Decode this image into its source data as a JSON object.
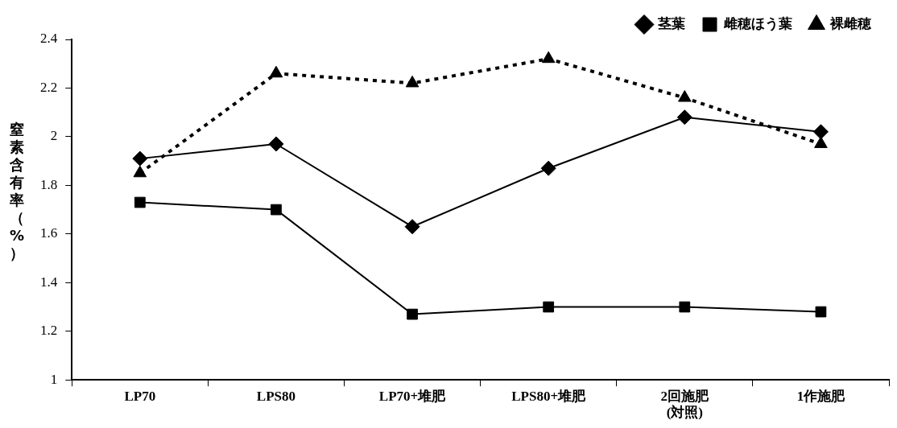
{
  "chart_data": {
    "type": "line",
    "ylabel": "窒素含有率（%）",
    "categories": [
      "LP70",
      "LPS80",
      "LP70+堆肥",
      "LPS80+堆肥",
      "2回施肥\n(対照)",
      "1作施肥"
    ],
    "series": [
      {
        "name": "茎葉",
        "color": "#000000",
        "marker": "diamond",
        "line_style": "solid",
        "values": [
          1.91,
          1.97,
          1.63,
          1.87,
          2.08,
          2.02
        ]
      },
      {
        "name": "雌穂ほう葉",
        "color": "#000000",
        "marker": "square",
        "line_style": "solid",
        "values": [
          1.73,
          1.7,
          1.27,
          1.3,
          1.3,
          1.28
        ]
      },
      {
        "name": "裸雌穂",
        "color": "#000000",
        "marker": "triangle",
        "line_style": "dotted",
        "values": [
          1.85,
          2.26,
          2.22,
          2.32,
          2.16,
          1.97
        ]
      }
    ],
    "ylim": [
      1,
      2.4
    ],
    "yticks": [
      1,
      1.2,
      1.4,
      1.6,
      1.8,
      2,
      2.2,
      2.4
    ],
    "grid": false,
    "legend": "top right"
  }
}
